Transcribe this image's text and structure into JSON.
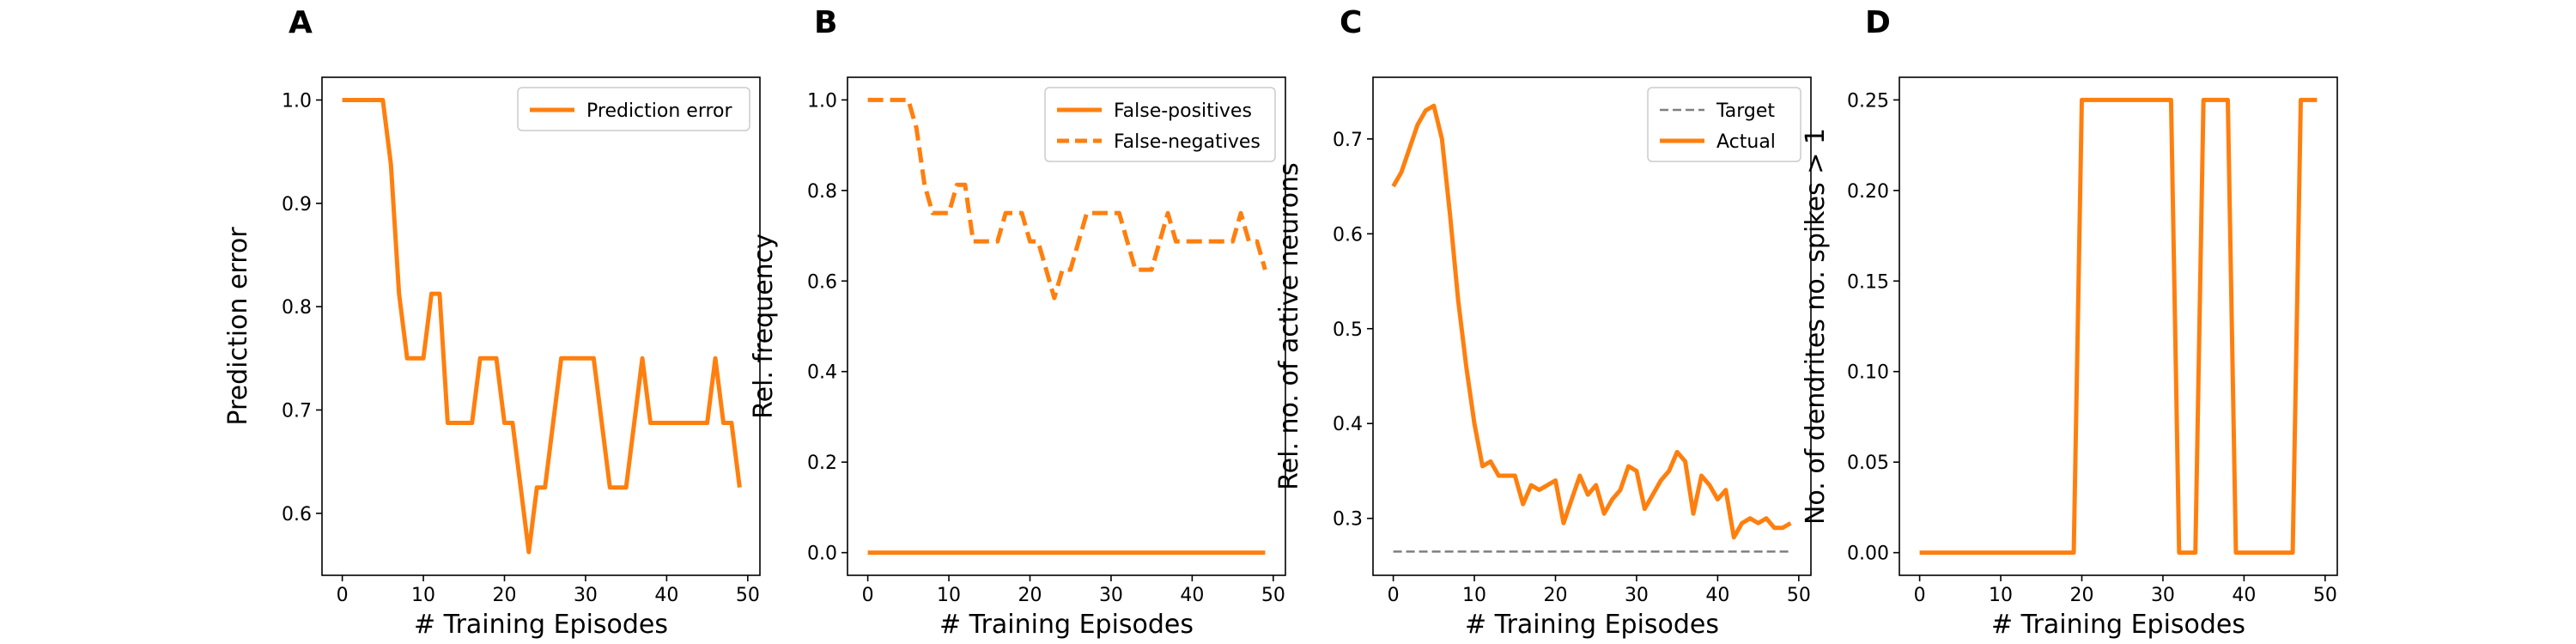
{
  "colors": {
    "orange": "#ff7f0e",
    "target_gray": "#7f7f7f"
  },
  "chart_data": [
    {
      "panel": "A",
      "type": "line",
      "xlabel": "# Training Episodes",
      "ylabel": "Prediction error",
      "xlim": [
        -2.5,
        51.5
      ],
      "ylim": [
        0.54,
        1.022
      ],
      "xticks": [
        0,
        10,
        20,
        30,
        40,
        50
      ],
      "yticks": [
        0.6,
        0.7,
        0.8,
        0.9,
        1.0
      ],
      "ytick_labels": [
        "0.6",
        "0.7",
        "0.8",
        "0.9",
        "1.0"
      ],
      "grid": false,
      "legend": "top-right",
      "series": [
        {
          "name": "Prediction error",
          "color": "#ff7f0e",
          "style": "solid",
          "x": [
            0,
            1,
            2,
            3,
            4,
            5,
            6,
            7,
            8,
            9,
            10,
            11,
            12,
            13,
            14,
            15,
            16,
            17,
            18,
            19,
            20,
            21,
            22,
            23,
            24,
            25,
            26,
            27,
            28,
            29,
            30,
            31,
            32,
            33,
            34,
            35,
            36,
            37,
            38,
            39,
            40,
            41,
            42,
            43,
            44,
            45,
            46,
            47,
            48,
            49
          ],
          "y": [
            1.0,
            1.0,
            1.0,
            1.0,
            1.0,
            1.0,
            0.9375,
            0.8125,
            0.75,
            0.75,
            0.75,
            0.8125,
            0.8125,
            0.6875,
            0.6875,
            0.6875,
            0.6875,
            0.75,
            0.75,
            0.75,
            0.6875,
            0.6875,
            0.625,
            0.5625,
            0.625,
            0.625,
            0.6875,
            0.75,
            0.75,
            0.75,
            0.75,
            0.75,
            0.6875,
            0.625,
            0.625,
            0.625,
            0.6875,
            0.75,
            0.6875,
            0.6875,
            0.6875,
            0.6875,
            0.6875,
            0.6875,
            0.6875,
            0.6875,
            0.75,
            0.6875,
            0.6875,
            0.625
          ]
        }
      ]
    },
    {
      "panel": "B",
      "type": "line",
      "xlabel": "# Training Episodes",
      "ylabel": "Rel. frequency",
      "xlim": [
        -2.5,
        51.5
      ],
      "ylim": [
        -0.05,
        1.05
      ],
      "xticks": [
        0,
        10,
        20,
        30,
        40,
        50
      ],
      "yticks": [
        0.0,
        0.2,
        0.4,
        0.6,
        0.8,
        1.0
      ],
      "ytick_labels": [
        "0.0",
        "0.2",
        "0.4",
        "0.6",
        "0.8",
        "1.0"
      ],
      "grid": false,
      "legend": "top-right",
      "series": [
        {
          "name": "False-positives",
          "color": "#ff7f0e",
          "style": "solid",
          "x": [
            0,
            49
          ],
          "y": [
            0,
            0
          ]
        },
        {
          "name": "False-negatives",
          "color": "#ff7f0e",
          "style": "dashed",
          "x": [
            0,
            1,
            2,
            3,
            4,
            5,
            6,
            7,
            8,
            9,
            10,
            11,
            12,
            13,
            14,
            15,
            16,
            17,
            18,
            19,
            20,
            21,
            22,
            23,
            24,
            25,
            26,
            27,
            28,
            29,
            30,
            31,
            32,
            33,
            34,
            35,
            36,
            37,
            38,
            39,
            40,
            41,
            42,
            43,
            44,
            45,
            46,
            47,
            48,
            49
          ],
          "y": [
            1.0,
            1.0,
            1.0,
            1.0,
            1.0,
            1.0,
            0.9375,
            0.8125,
            0.75,
            0.75,
            0.75,
            0.8125,
            0.8125,
            0.6875,
            0.6875,
            0.6875,
            0.6875,
            0.75,
            0.75,
            0.75,
            0.6875,
            0.6875,
            0.625,
            0.5625,
            0.625,
            0.625,
            0.6875,
            0.75,
            0.75,
            0.75,
            0.75,
            0.75,
            0.6875,
            0.625,
            0.625,
            0.625,
            0.6875,
            0.75,
            0.6875,
            0.6875,
            0.6875,
            0.6875,
            0.6875,
            0.6875,
            0.6875,
            0.6875,
            0.75,
            0.6875,
            0.6875,
            0.625
          ]
        }
      ]
    },
    {
      "panel": "C",
      "type": "line",
      "xlabel": "# Training Episodes",
      "ylabel": "Rel. no. of active neurons",
      "xlim": [
        -2.5,
        51.5
      ],
      "ylim": [
        0.24,
        0.765
      ],
      "xticks": [
        0,
        10,
        20,
        30,
        40,
        50
      ],
      "yticks": [
        0.3,
        0.4,
        0.5,
        0.6,
        0.7
      ],
      "ytick_labels": [
        "0.3",
        "0.4",
        "0.5",
        "0.6",
        "0.7"
      ],
      "grid": false,
      "legend": "top-right",
      "series": [
        {
          "name": "Target",
          "color": "#7f7f7f",
          "style": "dashed",
          "x": [
            0,
            49
          ],
          "y": [
            0.265,
            0.265
          ]
        },
        {
          "name": "Actual",
          "color": "#ff7f0e",
          "style": "solid",
          "x": [
            0,
            1,
            2,
            3,
            4,
            5,
            6,
            7,
            8,
            9,
            10,
            11,
            12,
            13,
            14,
            15,
            16,
            17,
            18,
            19,
            20,
            21,
            22,
            23,
            24,
            25,
            26,
            27,
            28,
            29,
            30,
            31,
            32,
            33,
            34,
            35,
            36,
            37,
            38,
            39,
            40,
            41,
            42,
            43,
            44,
            45,
            46,
            47,
            48,
            49
          ],
          "y": [
            0.65,
            0.665,
            0.69,
            0.715,
            0.73,
            0.735,
            0.7,
            0.62,
            0.53,
            0.46,
            0.4,
            0.355,
            0.36,
            0.345,
            0.345,
            0.345,
            0.315,
            0.335,
            0.33,
            0.335,
            0.34,
            0.295,
            0.32,
            0.345,
            0.325,
            0.335,
            0.305,
            0.32,
            0.33,
            0.355,
            0.35,
            0.31,
            0.325,
            0.34,
            0.35,
            0.37,
            0.36,
            0.305,
            0.345,
            0.335,
            0.32,
            0.33,
            0.28,
            0.295,
            0.3,
            0.295,
            0.3,
            0.29,
            0.29,
            0.295
          ]
        }
      ]
    },
    {
      "panel": "D",
      "type": "line",
      "xlabel": "# Training Episodes",
      "ylabel": "No. of dendrites no. spikes > 1",
      "xlim": [
        -2.5,
        51.5
      ],
      "ylim": [
        -0.0125,
        0.2625
      ],
      "xticks": [
        0,
        10,
        20,
        30,
        40,
        50
      ],
      "yticks": [
        0.0,
        0.05,
        0.1,
        0.15,
        0.2,
        0.25
      ],
      "ytick_labels": [
        "0.00",
        "0.05",
        "0.10",
        "0.15",
        "0.20",
        "0.25"
      ],
      "grid": false,
      "legend": "none",
      "series": [
        {
          "color": "#ff7f0e",
          "style": "solid",
          "x": [
            0,
            1,
            2,
            3,
            4,
            5,
            6,
            7,
            8,
            9,
            10,
            11,
            12,
            13,
            14,
            15,
            16,
            17,
            18,
            19,
            20,
            21,
            22,
            23,
            24,
            25,
            26,
            27,
            28,
            29,
            30,
            31,
            32,
            33,
            34,
            35,
            36,
            37,
            38,
            39,
            40,
            41,
            42,
            43,
            44,
            45,
            46,
            47,
            48,
            49
          ],
          "y": [
            0,
            0,
            0,
            0,
            0,
            0,
            0,
            0,
            0,
            0,
            0,
            0,
            0,
            0,
            0,
            0,
            0,
            0,
            0,
            0,
            0.25,
            0.25,
            0.25,
            0.25,
            0.25,
            0.25,
            0.25,
            0.25,
            0.25,
            0.25,
            0.25,
            0.25,
            0,
            0,
            0,
            0.25,
            0.25,
            0.25,
            0.25,
            0,
            0,
            0,
            0,
            0,
            0,
            0,
            0,
            0.25,
            0.25,
            0.25
          ]
        }
      ]
    }
  ]
}
